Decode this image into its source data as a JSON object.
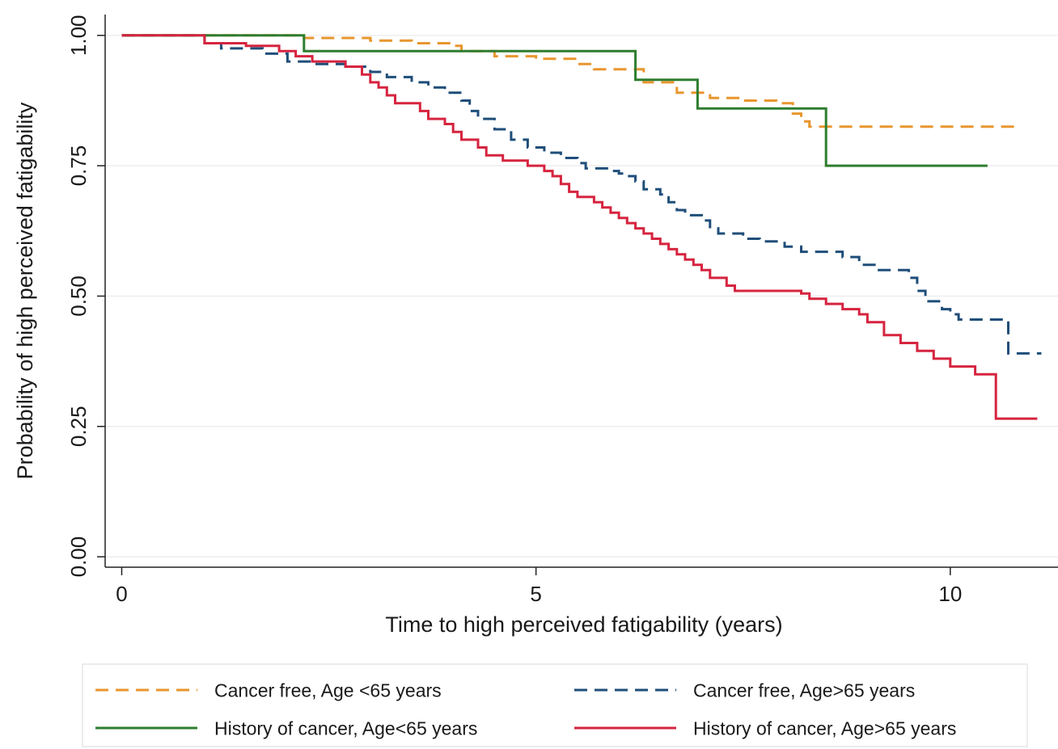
{
  "chart_data": {
    "type": "line",
    "step": true,
    "xlabel": "Time to high perceived fatigability (years)",
    "ylabel": "Probability of high perceived fatigability",
    "xlim": [
      -0.2,
      11.3
    ],
    "ylim": [
      -0.02,
      1.04
    ],
    "x_ticks": [
      {
        "value": 0,
        "label": "0"
      },
      {
        "value": 5,
        "label": "5"
      },
      {
        "value": 10,
        "label": "10"
      }
    ],
    "y_ticks": [
      {
        "value": 0,
        "label": "0.00"
      },
      {
        "value": 0.25,
        "label": "0.25"
      },
      {
        "value": 0.5,
        "label": "0.50"
      },
      {
        "value": 0.75,
        "label": "0.75"
      },
      {
        "value": 1,
        "label": "1.00"
      }
    ],
    "grid": {
      "horizontal": true,
      "vertical": false
    },
    "legend_position": "bottom",
    "series": [
      {
        "name": "Cancer free, Age <65 years",
        "color": "#e8962e",
        "dash": "dashed",
        "points": [
          [
            0,
            1.0
          ],
          [
            2.2,
            1.0
          ],
          [
            2.2,
            0.995
          ],
          [
            3.0,
            0.995
          ],
          [
            3.0,
            0.99
          ],
          [
            3.5,
            0.99
          ],
          [
            3.5,
            0.985
          ],
          [
            4.0,
            0.985
          ],
          [
            4.0,
            0.98
          ],
          [
            4.1,
            0.98
          ],
          [
            4.1,
            0.97
          ],
          [
            4.5,
            0.97
          ],
          [
            4.5,
            0.96
          ],
          [
            5.0,
            0.96
          ],
          [
            5.0,
            0.955
          ],
          [
            5.5,
            0.955
          ],
          [
            5.5,
            0.945
          ],
          [
            5.7,
            0.945
          ],
          [
            5.7,
            0.935
          ],
          [
            6.3,
            0.935
          ],
          [
            6.3,
            0.91
          ],
          [
            6.7,
            0.91
          ],
          [
            6.7,
            0.89
          ],
          [
            7.1,
            0.89
          ],
          [
            7.1,
            0.88
          ],
          [
            7.5,
            0.88
          ],
          [
            7.5,
            0.875
          ],
          [
            7.9,
            0.875
          ],
          [
            7.9,
            0.87
          ],
          [
            8.1,
            0.87
          ],
          [
            8.1,
            0.85
          ],
          [
            8.2,
            0.85
          ],
          [
            8.2,
            0.835
          ],
          [
            8.3,
            0.835
          ],
          [
            8.3,
            0.825
          ],
          [
            10.8,
            0.825
          ]
        ]
      },
      {
        "name": "Cancer free, Age>65 years",
        "color": "#1f4e79",
        "dash": "dashed",
        "points": [
          [
            0,
            1.0
          ],
          [
            1.0,
            1.0
          ],
          [
            1.0,
            0.985
          ],
          [
            1.2,
            0.985
          ],
          [
            1.2,
            0.975
          ],
          [
            1.7,
            0.975
          ],
          [
            1.7,
            0.965
          ],
          [
            2.0,
            0.965
          ],
          [
            2.0,
            0.95
          ],
          [
            2.3,
            0.95
          ],
          [
            2.3,
            0.945
          ],
          [
            2.7,
            0.945
          ],
          [
            2.7,
            0.94
          ],
          [
            3.0,
            0.94
          ],
          [
            3.0,
            0.93
          ],
          [
            3.2,
            0.93
          ],
          [
            3.2,
            0.92
          ],
          [
            3.5,
            0.92
          ],
          [
            3.5,
            0.91
          ],
          [
            3.7,
            0.91
          ],
          [
            3.7,
            0.9
          ],
          [
            3.9,
            0.9
          ],
          [
            3.9,
            0.89
          ],
          [
            4.1,
            0.89
          ],
          [
            4.1,
            0.875
          ],
          [
            4.2,
            0.875
          ],
          [
            4.2,
            0.855
          ],
          [
            4.3,
            0.855
          ],
          [
            4.3,
            0.84
          ],
          [
            4.5,
            0.84
          ],
          [
            4.5,
            0.82
          ],
          [
            4.7,
            0.82
          ],
          [
            4.7,
            0.8
          ],
          [
            4.9,
            0.8
          ],
          [
            4.9,
            0.785
          ],
          [
            5.1,
            0.785
          ],
          [
            5.1,
            0.775
          ],
          [
            5.3,
            0.775
          ],
          [
            5.3,
            0.765
          ],
          [
            5.5,
            0.765
          ],
          [
            5.5,
            0.755
          ],
          [
            5.6,
            0.755
          ],
          [
            5.6,
            0.745
          ],
          [
            5.9,
            0.745
          ],
          [
            5.9,
            0.74
          ],
          [
            6.0,
            0.74
          ],
          [
            6.0,
            0.735
          ],
          [
            6.1,
            0.735
          ],
          [
            6.1,
            0.73
          ],
          [
            6.2,
            0.73
          ],
          [
            6.2,
            0.72
          ],
          [
            6.3,
            0.72
          ],
          [
            6.3,
            0.705
          ],
          [
            6.5,
            0.705
          ],
          [
            6.5,
            0.695
          ],
          [
            6.6,
            0.695
          ],
          [
            6.6,
            0.68
          ],
          [
            6.7,
            0.68
          ],
          [
            6.7,
            0.665
          ],
          [
            6.8,
            0.665
          ],
          [
            6.8,
            0.655
          ],
          [
            7.0,
            0.655
          ],
          [
            7.0,
            0.645
          ],
          [
            7.1,
            0.645
          ],
          [
            7.1,
            0.63
          ],
          [
            7.2,
            0.63
          ],
          [
            7.2,
            0.62
          ],
          [
            7.5,
            0.62
          ],
          [
            7.5,
            0.61
          ],
          [
            7.7,
            0.61
          ],
          [
            7.7,
            0.605
          ],
          [
            8.0,
            0.605
          ],
          [
            8.0,
            0.595
          ],
          [
            8.2,
            0.595
          ],
          [
            8.2,
            0.585
          ],
          [
            8.7,
            0.585
          ],
          [
            8.7,
            0.575
          ],
          [
            8.9,
            0.575
          ],
          [
            8.9,
            0.56
          ],
          [
            9.1,
            0.56
          ],
          [
            9.1,
            0.55
          ],
          [
            9.5,
            0.55
          ],
          [
            9.5,
            0.535
          ],
          [
            9.6,
            0.535
          ],
          [
            9.6,
            0.51
          ],
          [
            9.7,
            0.51
          ],
          [
            9.7,
            0.49
          ],
          [
            9.9,
            0.49
          ],
          [
            9.9,
            0.475
          ],
          [
            10.0,
            0.475
          ],
          [
            10.0,
            0.465
          ],
          [
            10.1,
            0.465
          ],
          [
            10.1,
            0.455
          ],
          [
            10.7,
            0.455
          ],
          [
            10.7,
            0.39
          ],
          [
            11.1,
            0.39
          ]
        ]
      },
      {
        "name": "History of cancer, Age<65 years",
        "color": "#2e7d2e",
        "dash": "solid",
        "points": [
          [
            0,
            1.0
          ],
          [
            2.2,
            1.0
          ],
          [
            2.2,
            0.97
          ],
          [
            6.2,
            0.97
          ],
          [
            6.2,
            0.915
          ],
          [
            6.95,
            0.915
          ],
          [
            6.95,
            0.86
          ],
          [
            8.5,
            0.86
          ],
          [
            8.5,
            0.75
          ],
          [
            10.45,
            0.75
          ]
        ]
      },
      {
        "name": "History of cancer, Age>65 years",
        "color": "#d6243f",
        "dash": "solid",
        "points": [
          [
            0,
            1.0
          ],
          [
            1.0,
            1.0
          ],
          [
            1.0,
            0.985
          ],
          [
            1.5,
            0.985
          ],
          [
            1.5,
            0.98
          ],
          [
            1.9,
            0.98
          ],
          [
            1.9,
            0.97
          ],
          [
            2.1,
            0.97
          ],
          [
            2.1,
            0.96
          ],
          [
            2.3,
            0.96
          ],
          [
            2.3,
            0.95
          ],
          [
            2.7,
            0.95
          ],
          [
            2.7,
            0.94
          ],
          [
            2.9,
            0.94
          ],
          [
            2.9,
            0.925
          ],
          [
            3.0,
            0.925
          ],
          [
            3.0,
            0.91
          ],
          [
            3.1,
            0.91
          ],
          [
            3.1,
            0.9
          ],
          [
            3.2,
            0.9
          ],
          [
            3.2,
            0.885
          ],
          [
            3.3,
            0.885
          ],
          [
            3.3,
            0.87
          ],
          [
            3.6,
            0.87
          ],
          [
            3.6,
            0.855
          ],
          [
            3.7,
            0.855
          ],
          [
            3.7,
            0.84
          ],
          [
            3.9,
            0.84
          ],
          [
            3.9,
            0.83
          ],
          [
            4.0,
            0.83
          ],
          [
            4.0,
            0.815
          ],
          [
            4.1,
            0.815
          ],
          [
            4.1,
            0.8
          ],
          [
            4.3,
            0.8
          ],
          [
            4.3,
            0.785
          ],
          [
            4.4,
            0.785
          ],
          [
            4.4,
            0.77
          ],
          [
            4.6,
            0.77
          ],
          [
            4.6,
            0.76
          ],
          [
            4.9,
            0.76
          ],
          [
            4.9,
            0.75
          ],
          [
            5.1,
            0.75
          ],
          [
            5.1,
            0.74
          ],
          [
            5.2,
            0.74
          ],
          [
            5.2,
            0.73
          ],
          [
            5.3,
            0.73
          ],
          [
            5.3,
            0.715
          ],
          [
            5.4,
            0.715
          ],
          [
            5.4,
            0.7
          ],
          [
            5.5,
            0.7
          ],
          [
            5.5,
            0.69
          ],
          [
            5.7,
            0.69
          ],
          [
            5.7,
            0.68
          ],
          [
            5.8,
            0.68
          ],
          [
            5.8,
            0.67
          ],
          [
            5.9,
            0.67
          ],
          [
            5.9,
            0.66
          ],
          [
            6.0,
            0.66
          ],
          [
            6.0,
            0.65
          ],
          [
            6.1,
            0.65
          ],
          [
            6.1,
            0.64
          ],
          [
            6.2,
            0.64
          ],
          [
            6.2,
            0.63
          ],
          [
            6.3,
            0.63
          ],
          [
            6.3,
            0.62
          ],
          [
            6.4,
            0.62
          ],
          [
            6.4,
            0.61
          ],
          [
            6.5,
            0.61
          ],
          [
            6.5,
            0.6
          ],
          [
            6.6,
            0.6
          ],
          [
            6.6,
            0.59
          ],
          [
            6.7,
            0.59
          ],
          [
            6.7,
            0.58
          ],
          [
            6.8,
            0.58
          ],
          [
            6.8,
            0.57
          ],
          [
            6.9,
            0.57
          ],
          [
            6.9,
            0.56
          ],
          [
            7.0,
            0.56
          ],
          [
            7.0,
            0.55
          ],
          [
            7.1,
            0.55
          ],
          [
            7.1,
            0.535
          ],
          [
            7.3,
            0.535
          ],
          [
            7.3,
            0.52
          ],
          [
            7.4,
            0.52
          ],
          [
            7.4,
            0.51
          ],
          [
            8.2,
            0.51
          ],
          [
            8.2,
            0.505
          ],
          [
            8.3,
            0.505
          ],
          [
            8.3,
            0.495
          ],
          [
            8.5,
            0.495
          ],
          [
            8.5,
            0.485
          ],
          [
            8.7,
            0.485
          ],
          [
            8.7,
            0.475
          ],
          [
            8.9,
            0.475
          ],
          [
            8.9,
            0.465
          ],
          [
            9.0,
            0.465
          ],
          [
            9.0,
            0.45
          ],
          [
            9.2,
            0.45
          ],
          [
            9.2,
            0.425
          ],
          [
            9.4,
            0.425
          ],
          [
            9.4,
            0.41
          ],
          [
            9.6,
            0.41
          ],
          [
            9.6,
            0.395
          ],
          [
            9.8,
            0.395
          ],
          [
            9.8,
            0.38
          ],
          [
            10.0,
            0.38
          ],
          [
            10.0,
            0.365
          ],
          [
            10.3,
            0.365
          ],
          [
            10.3,
            0.35
          ],
          [
            10.55,
            0.35
          ],
          [
            10.55,
            0.265
          ],
          [
            11.05,
            0.265
          ]
        ]
      }
    ]
  }
}
